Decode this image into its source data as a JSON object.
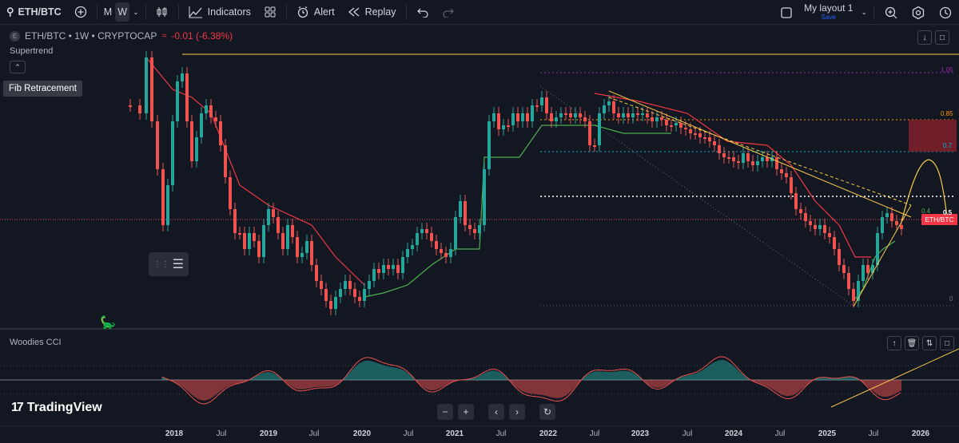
{
  "toolbar": {
    "symbol": "ETH/BTC",
    "intervals": [
      "M",
      "W"
    ],
    "active_interval": "W",
    "indicators_label": "Indicators",
    "alert_label": "Alert",
    "replay_label": "Replay",
    "layout_name": "My layout 1",
    "layout_save": "Save",
    "icons": [
      "search-icon",
      "add-icon",
      "chevron-down-icon",
      "candles-icon",
      "indicators-icon",
      "templates-icon",
      "alert-icon",
      "replay-icon",
      "undo-icon",
      "redo-icon",
      "layout-icon",
      "quick-search-icon",
      "settings-icon"
    ]
  },
  "legend": {
    "icon": "E",
    "title": "ETH/BTC • 1W • CRYPTOCAP",
    "change": "-0.01 (-6.38%)"
  },
  "indicators": {
    "supertrend": "Supertrend",
    "woodies": "Woodies CCI"
  },
  "tooltip": "Fib Retracement",
  "price_badge": "ETH/BTC",
  "fib_levels": [
    "1.05",
    "0.85",
    "0.7",
    "0.5",
    "0.4",
    "0"
  ],
  "time_axis": [
    {
      "label": "2018",
      "year": true
    },
    {
      "label": "Jul",
      "year": false
    },
    {
      "label": "2019",
      "year": true
    },
    {
      "label": "Jul",
      "year": false
    },
    {
      "label": "2020",
      "year": true
    },
    {
      "label": "Jul",
      "year": false
    },
    {
      "label": "2021",
      "year": true
    },
    {
      "label": "Jul",
      "year": false
    },
    {
      "label": "2022",
      "year": true
    },
    {
      "label": "Jul",
      "year": false
    },
    {
      "label": "2023",
      "year": true
    },
    {
      "label": "Jul",
      "year": false
    },
    {
      "label": "2024",
      "year": true
    },
    {
      "label": "Jul",
      "year": false
    },
    {
      "label": "2025",
      "year": true
    },
    {
      "label": "Jul",
      "year": false
    },
    {
      "label": "2026",
      "year": true
    }
  ],
  "logo_text": "TradingView",
  "colors": {
    "background": "#131722",
    "up": "#26a69a",
    "down": "#ef5350",
    "supertrend_down": "#f23645",
    "supertrend_up": "#4caf50",
    "trend_line": "#f7c948",
    "fib_0_5": "#ffffff",
    "fib_0_7": "#00bcd4",
    "fib_0_85": "#ff9800",
    "fib_1_05": "#9c27b0"
  }
}
